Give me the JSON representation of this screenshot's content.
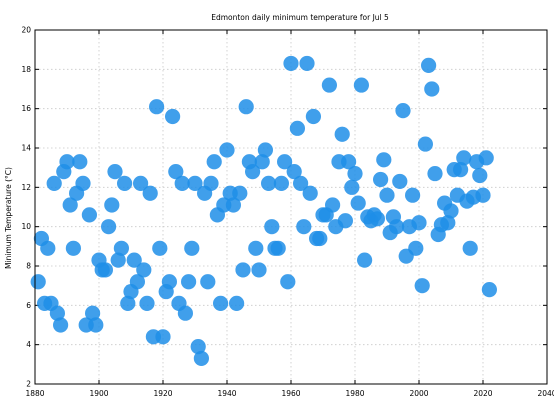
{
  "chart_data": {
    "type": "scatter",
    "title": "Edmonton daily minimum temperature for Jul 5",
    "xlabel": "",
    "ylabel": "Minimum Temperature (°C)",
    "xlim": [
      1880,
      2040
    ],
    "ylim": [
      2,
      20
    ],
    "xticks": [
      1880,
      1900,
      1920,
      1940,
      1960,
      1980,
      2000,
      2020,
      2040
    ],
    "yticks": [
      2,
      4,
      6,
      8,
      10,
      12,
      14,
      16,
      18,
      20
    ],
    "grid": true,
    "marker_color": "#1e8ee8",
    "series": [
      {
        "points": [
          [
            1881,
            7.2
          ],
          [
            1882,
            9.4
          ],
          [
            1883,
            6.1
          ],
          [
            1884,
            8.9
          ],
          [
            1885,
            6.1
          ],
          [
            1886,
            12.2
          ],
          [
            1887,
            5.6
          ],
          [
            1888,
            5.0
          ],
          [
            1889,
            12.8
          ],
          [
            1890,
            13.3
          ],
          [
            1891,
            11.1
          ],
          [
            1892,
            8.9
          ],
          [
            1893,
            11.7
          ],
          [
            1894,
            13.3
          ],
          [
            1895,
            12.2
          ],
          [
            1896,
            5.0
          ],
          [
            1897,
            10.6
          ],
          [
            1898,
            5.6
          ],
          [
            1899,
            5.0
          ],
          [
            1900,
            8.3
          ],
          [
            1901,
            7.8
          ],
          [
            1902,
            7.8
          ],
          [
            1903,
            10.0
          ],
          [
            1904,
            11.1
          ],
          [
            1905,
            12.8
          ],
          [
            1906,
            8.3
          ],
          [
            1907,
            8.9
          ],
          [
            1908,
            12.2
          ],
          [
            1909,
            6.1
          ],
          [
            1910,
            6.7
          ],
          [
            1911,
            8.3
          ],
          [
            1912,
            7.2
          ],
          [
            1913,
            12.2
          ],
          [
            1914,
            7.8
          ],
          [
            1915,
            6.1
          ],
          [
            1916,
            11.7
          ],
          [
            1917,
            4.4
          ],
          [
            1918,
            16.1
          ],
          [
            1919,
            8.9
          ],
          [
            1920,
            4.4
          ],
          [
            1921,
            6.7
          ],
          [
            1922,
            7.2
          ],
          [
            1923,
            15.6
          ],
          [
            1924,
            12.8
          ],
          [
            1925,
            6.1
          ],
          [
            1926,
            12.2
          ],
          [
            1927,
            5.6
          ],
          [
            1928,
            7.2
          ],
          [
            1929,
            8.9
          ],
          [
            1930,
            12.2
          ],
          [
            1931,
            3.9
          ],
          [
            1932,
            3.3
          ],
          [
            1933,
            11.7
          ],
          [
            1934,
            7.2
          ],
          [
            1935,
            12.2
          ],
          [
            1936,
            13.3
          ],
          [
            1937,
            10.6
          ],
          [
            1938,
            6.1
          ],
          [
            1939,
            11.1
          ],
          [
            1940,
            13.9
          ],
          [
            1941,
            11.7
          ],
          [
            1942,
            11.1
          ],
          [
            1943,
            6.1
          ],
          [
            1944,
            11.7
          ],
          [
            1945,
            7.8
          ],
          [
            1946,
            16.1
          ],
          [
            1947,
            13.3
          ],
          [
            1948,
            12.8
          ],
          [
            1949,
            8.9
          ],
          [
            1950,
            7.8
          ],
          [
            1951,
            13.3
          ],
          [
            1952,
            13.9
          ],
          [
            1953,
            12.2
          ],
          [
            1954,
            10.0
          ],
          [
            1955,
            8.9
          ],
          [
            1956,
            8.9
          ],
          [
            1957,
            12.2
          ],
          [
            1958,
            13.3
          ],
          [
            1959,
            7.2
          ],
          [
            1960,
            18.3
          ],
          [
            1961,
            12.8
          ],
          [
            1962,
            15.0
          ],
          [
            1963,
            12.2
          ],
          [
            1964,
            10.0
          ],
          [
            1965,
            18.3
          ],
          [
            1966,
            11.7
          ],
          [
            1967,
            15.6
          ],
          [
            1968,
            9.4
          ],
          [
            1969,
            9.4
          ],
          [
            1970,
            10.6
          ],
          [
            1971,
            10.6
          ],
          [
            1972,
            17.2
          ],
          [
            1973,
            11.1
          ],
          [
            1974,
            10.0
          ],
          [
            1975,
            13.3
          ],
          [
            1976,
            14.7
          ],
          [
            1977,
            10.3
          ],
          [
            1978,
            13.3
          ],
          [
            1979,
            12.0
          ],
          [
            1980,
            12.7
          ],
          [
            1981,
            11.2
          ],
          [
            1982,
            17.2
          ],
          [
            1983,
            8.3
          ],
          [
            1984,
            10.5
          ],
          [
            1985,
            10.3
          ],
          [
            1986,
            10.6
          ],
          [
            1987,
            10.4
          ],
          [
            1988,
            12.4
          ],
          [
            1989,
            13.4
          ],
          [
            1990,
            11.6
          ],
          [
            1991,
            9.7
          ],
          [
            1992,
            10.5
          ],
          [
            1993,
            10.0
          ],
          [
            1994,
            12.3
          ],
          [
            1995,
            15.9
          ],
          [
            1996,
            8.5
          ],
          [
            1997,
            10.0
          ],
          [
            1998,
            11.6
          ],
          [
            1999,
            8.9
          ],
          [
            2000,
            10.2
          ],
          [
            2001,
            7.0
          ],
          [
            2002,
            14.2
          ],
          [
            2003,
            18.2
          ],
          [
            2004,
            17.0
          ],
          [
            2005,
            12.7
          ],
          [
            2006,
            9.6
          ],
          [
            2007,
            10.1
          ],
          [
            2008,
            11.2
          ],
          [
            2009,
            10.2
          ],
          [
            2010,
            10.8
          ],
          [
            2011,
            12.9
          ],
          [
            2012,
            11.6
          ],
          [
            2013,
            12.9
          ],
          [
            2014,
            13.5
          ],
          [
            2015,
            11.3
          ],
          [
            2016,
            8.9
          ],
          [
            2017,
            11.5
          ],
          [
            2018,
            13.3
          ],
          [
            2019,
            12.6
          ],
          [
            2020,
            11.6
          ],
          [
            2021,
            13.5
          ],
          [
            2022,
            6.8
          ]
        ]
      }
    ]
  }
}
